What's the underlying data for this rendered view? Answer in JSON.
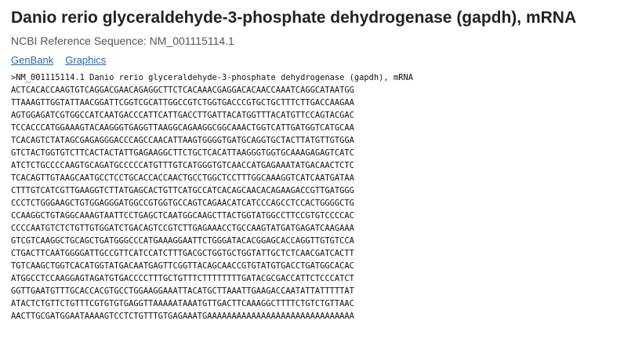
{
  "header": {
    "title": "Danio rerio glyceraldehyde-3-phosphate dehydrogenase (gapdh), mRNA",
    "reference": "NCBI Reference Sequence: NM_001115114.1"
  },
  "links": [
    {
      "label": "GenBank"
    },
    {
      "label": "Graphics"
    }
  ],
  "fasta": {
    "header_line": ">NM_001115114.1 Danio rerio glyceraldehyde-3-phosphate dehydrogenase (gapdh), mRNA",
    "lines": [
      "ACTCACACCAAGTGTCAGGACGAACAGAGGCTTCTCACAAACGAGGACACAACCAAATCAGGCATAATGG",
      "TTAAAGTTGGTATTAACGGATTCGGTCGCATTGGCCGTCTGGTGACCCGTGCTGCTTTCTTGACCAAGAA",
      "AGTGGAGATCGTGGCCATCAATGACCCATTCATTGACCTTGATTACATGGTTTACATGTTCCAGTACGAC",
      "TCCACCCATGGAAAGTACAAGGGTGAGGTTAAGGCAGAAGGCGGCAAACTGGTCATTGATGGTCATGCAA",
      "TCACAGTCTATAGCGAGAGGGACCCAGCCAACATTAAGTGGGGTGATGCAGGTGCTACTTATGTTGTGGA",
      "GTCTACTGGTGTCTTCACTACTATTGAGAAGGCTTCTGCTCACATTAAGGGTGGTGCAAAGAGAGTCATC",
      "ATCTCTGCCCCAAGTGCAGATGCCCCCATGTTTGTCATGGGTGTCAACCATGAGAAATATGACAACTCTC",
      "TCACAGTTGTAAGCAATGCCTCCTGCACCACCAACTGCCTGGCTCCTTTGGCAAAGGTCATCAATGATAA",
      "CTTTGTCATCGTTGAAGGTCTTATGAGCACTGTTCATGCCATCACAGCAACACAGAAGACCGTTGATGGG",
      "CCCTCTGGGAAGCTGTGGAGGGATGGCCGTGGTGCCAGTCAGAACATCATCCCAGCCTCCACTGGGGCTG",
      "CCAAGGCTGTAGGCAAAGTAATTCCTGAGCTCAATGGCAAGCTTACTGGTATGGCCTTCCGTGTCCCCAC",
      "CCCCAATGTCTCTGTTGTGGATCTGACAGTCCGTCTTGAGAAACCTGCCAAGTATGATGAGATCAAGAAA",
      "GTCGTCAAGGCTGCAGCTGATGGGCCCATGAAAGGAATTCTGGGATACACGGAGCACCAGGTTGTGTCCA",
      "CTGACTTCAATGGGGATTGCCGTTCATCCATCTTTGACGCTGGTGCTGGTATTGCTCTCAACGATCACTT",
      "TGTCAAGCTGGTCACATGGTATGACAATGAGTTCGGTTACAGCAACCGTGTATGTGACCTGATGGCACAC",
      "ATGGCCTCCAAGGAGTAGATGTGACCCCTTTGCTGTTTCTTTTTTTTGATACGCGACCATTCTCCCATCT",
      "GGTTGAATGTTTGCACCACGTGCCTGGAAGGAAATTACATGCTTAAATTGAAGACCAATATTATTTTTAT",
      "ATACTCTGTTCTGTTTCGTGTGTGAGGTTAAAAATAAATGTTGACTTCAAAGGCTTTTCTGTCTGTTAAC",
      "AACTTGCGATGGAATAAAAGTCCTCTGTTTGTGAGAAATGAAAAAAAAAAAAAAAAAAAAAAAAAAAAAA"
    ]
  }
}
